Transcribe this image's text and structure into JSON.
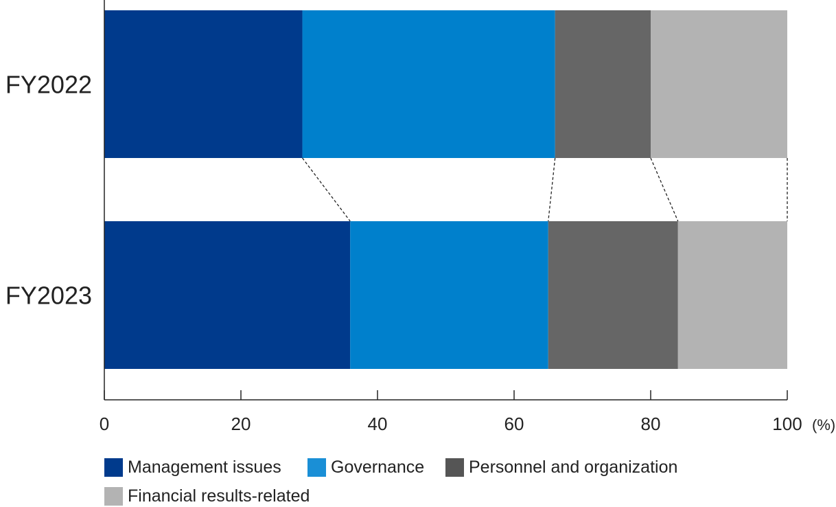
{
  "chart_data": {
    "type": "bar",
    "orientation": "horizontal",
    "stacked": true,
    "categories": [
      "FY2022",
      "FY2023"
    ],
    "series": [
      {
        "name": "Management issues",
        "color": "#003A8C",
        "values": [
          29,
          36
        ]
      },
      {
        "name": "Governance",
        "color": "#0080CC",
        "values": [
          37,
          29
        ]
      },
      {
        "name": "Personnel and organization",
        "color": "#666666",
        "values": [
          14,
          19
        ]
      },
      {
        "name": "Financial results-related",
        "color": "#B3B3B3",
        "values": [
          20,
          16
        ]
      }
    ],
    "xlim": [
      0,
      100
    ],
    "xticks": [
      "0",
      "20",
      "40",
      "60",
      "80",
      "100"
    ],
    "x_unit": "(%)",
    "title": "",
    "xlabel": "",
    "ylabel": "",
    "grid": false,
    "connector_lines": "dashed",
    "legend_position": "bottom",
    "legend_swatch_colors": [
      "#003A8C",
      "#1A8FD6",
      "#555555",
      "#B3B3B3"
    ]
  }
}
